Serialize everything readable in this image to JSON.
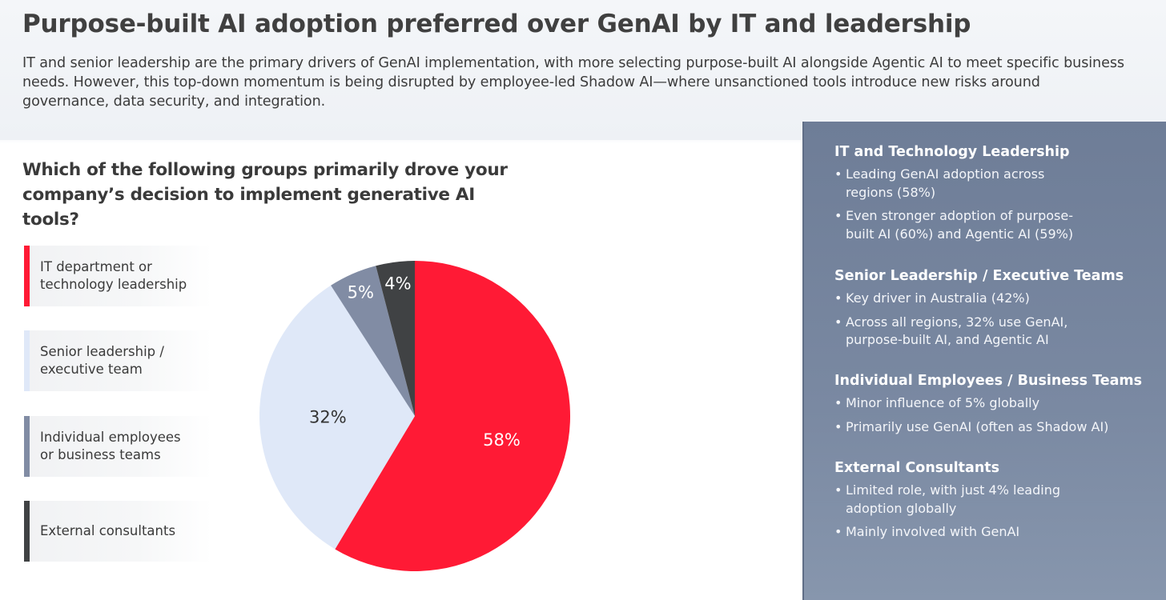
{
  "header": {
    "title": "Purpose-built AI adoption preferred over GenAI by IT and leadership",
    "subtitle": "IT and senior leadership are the primary drivers of GenAI implementation, with more selecting purpose-built AI alongside Agentic AI to meet specific business needs. However, this top-down momentum is being disrupted by employee-led Shadow AI—where unsanctioned tools introduce new risks around governance, data security, and integration."
  },
  "question": "Which of the following groups primarily drove your company’s decision to implement generative AI tools?",
  "chart_data": {
    "type": "pie",
    "title": "Which of the following groups primarily drove your company’s decision to implement generative AI tools?",
    "categories": [
      "IT department or technology leadership",
      "Senior leadership / executive team",
      "Individual employees or business teams",
      "External consultants"
    ],
    "values": [
      58,
      32,
      5,
      4
    ],
    "value_labels": [
      "58%",
      "32%",
      "5%",
      "4%"
    ],
    "colors": [
      "#ff1a35",
      "#dfe8f8",
      "#818ca4",
      "#404244"
    ],
    "label_colors": [
      "#ffffff",
      "#333333",
      "#ffffff",
      "#ffffff"
    ],
    "legend_placement": "left"
  },
  "legend": [
    {
      "label": "IT department or\ntechnology leadership",
      "color": "#ff1a35"
    },
    {
      "label": "Senior leadership /\nexecutive team",
      "color": "#dfe8f8"
    },
    {
      "label": "Individual employees\nor business teams",
      "color": "#818ca4"
    },
    {
      "label": "External consultants",
      "color": "#404244"
    }
  ],
  "panel": {
    "sections": [
      {
        "heading": "IT and Technology Leadership",
        "bullets": [
          "Leading GenAI adoption across regions (58%)",
          "Even stronger adoption of purpose-built AI (60%) and Agentic AI (59%)"
        ]
      },
      {
        "heading": "Senior Leadership / Executive Teams",
        "bullets": [
          "Key driver in Australia (42%)",
          "Across all regions, 32% use GenAI, purpose-built AI, and Agentic AI"
        ]
      },
      {
        "heading": "Individual Employees / Business Teams",
        "bullets": [
          "Minor influence of 5% globally",
          "Primarily use GenAI (often as Shadow AI)"
        ]
      },
      {
        "heading": "External Consultants",
        "bullets": [
          "Limited role, with just 4% leading adoption globally",
          "Mainly involved with GenAI"
        ]
      }
    ]
  }
}
